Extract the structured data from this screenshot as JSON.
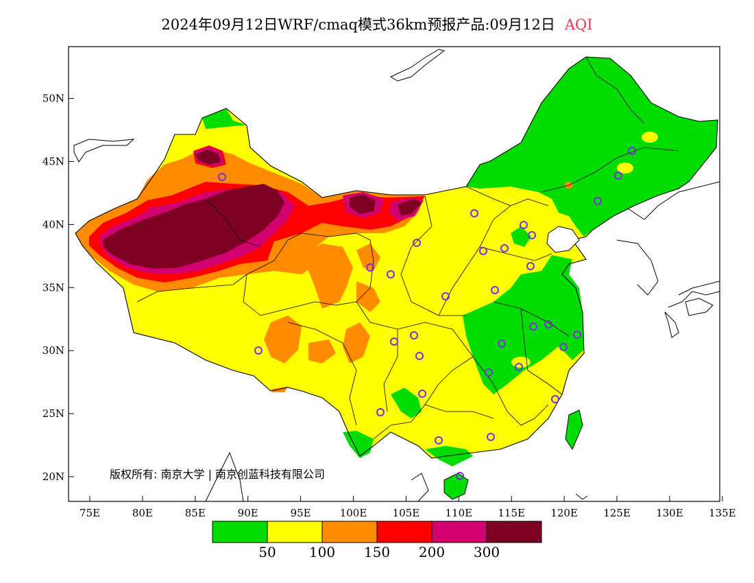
{
  "title": {
    "main": "2024年09月12日WRF/cmaq模式36km预报产品:09月12日",
    "pollutant": "AQI"
  },
  "axes": {
    "lon_ticks": [
      "75E",
      "80E",
      "85E",
      "90E",
      "95E",
      "100E",
      "105E",
      "110E",
      "115E",
      "120E",
      "125E",
      "130E",
      "135E"
    ],
    "lat_ticks": [
      "20N",
      "25N",
      "30N",
      "35N",
      "40N",
      "45N",
      "50N"
    ],
    "lon_range": [
      73,
      135
    ],
    "lat_range": [
      18,
      54
    ]
  },
  "copyright": "版权所有: 南京大学 | 南京创蓝科技有限公司",
  "legend": {
    "labels": [
      "50",
      "100",
      "150",
      "200",
      "300"
    ],
    "colors": [
      "#00dc00",
      "#ffff00",
      "#ff8c00",
      "#ff0000",
      "#d2006e",
      "#7d0023"
    ]
  },
  "colors": {
    "good": "#00dc00",
    "moderate": "#ffff00",
    "usg": "#ff8c00",
    "unhealthy": "#ff0000",
    "very_unhealthy": "#d2006e",
    "hazardous": "#7d0023",
    "station_marker": "#7b2fe0"
  }
}
